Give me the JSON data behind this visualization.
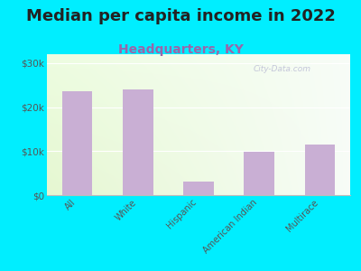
{
  "title": "Median per capita income in 2022",
  "subtitle": "Headquarters, KY",
  "categories": [
    "All",
    "White",
    "Hispanic",
    "American Indian",
    "Multirace"
  ],
  "values": [
    23500,
    24000,
    3000,
    9800,
    11500
  ],
  "bar_color": "#c9afd4",
  "title_fontsize": 13,
  "subtitle_fontsize": 10,
  "title_color": "#222222",
  "subtitle_color": "#9966aa",
  "tick_label_color": "#555555",
  "background_outer": "#00eeff",
  "yticks": [
    0,
    10000,
    20000,
    30000
  ],
  "ytick_labels": [
    "$0",
    "$10k",
    "$20k",
    "$30k"
  ],
  "ylim": [
    0,
    32000
  ],
  "watermark": "City-Data.com",
  "bg_topleft": [
    0.93,
    0.99,
    0.88
  ],
  "bg_topright": [
    0.97,
    0.99,
    0.97
  ],
  "bg_bottomleft": [
    0.9,
    0.97,
    0.82
  ],
  "bg_bottomright": [
    0.97,
    0.99,
    0.97
  ]
}
